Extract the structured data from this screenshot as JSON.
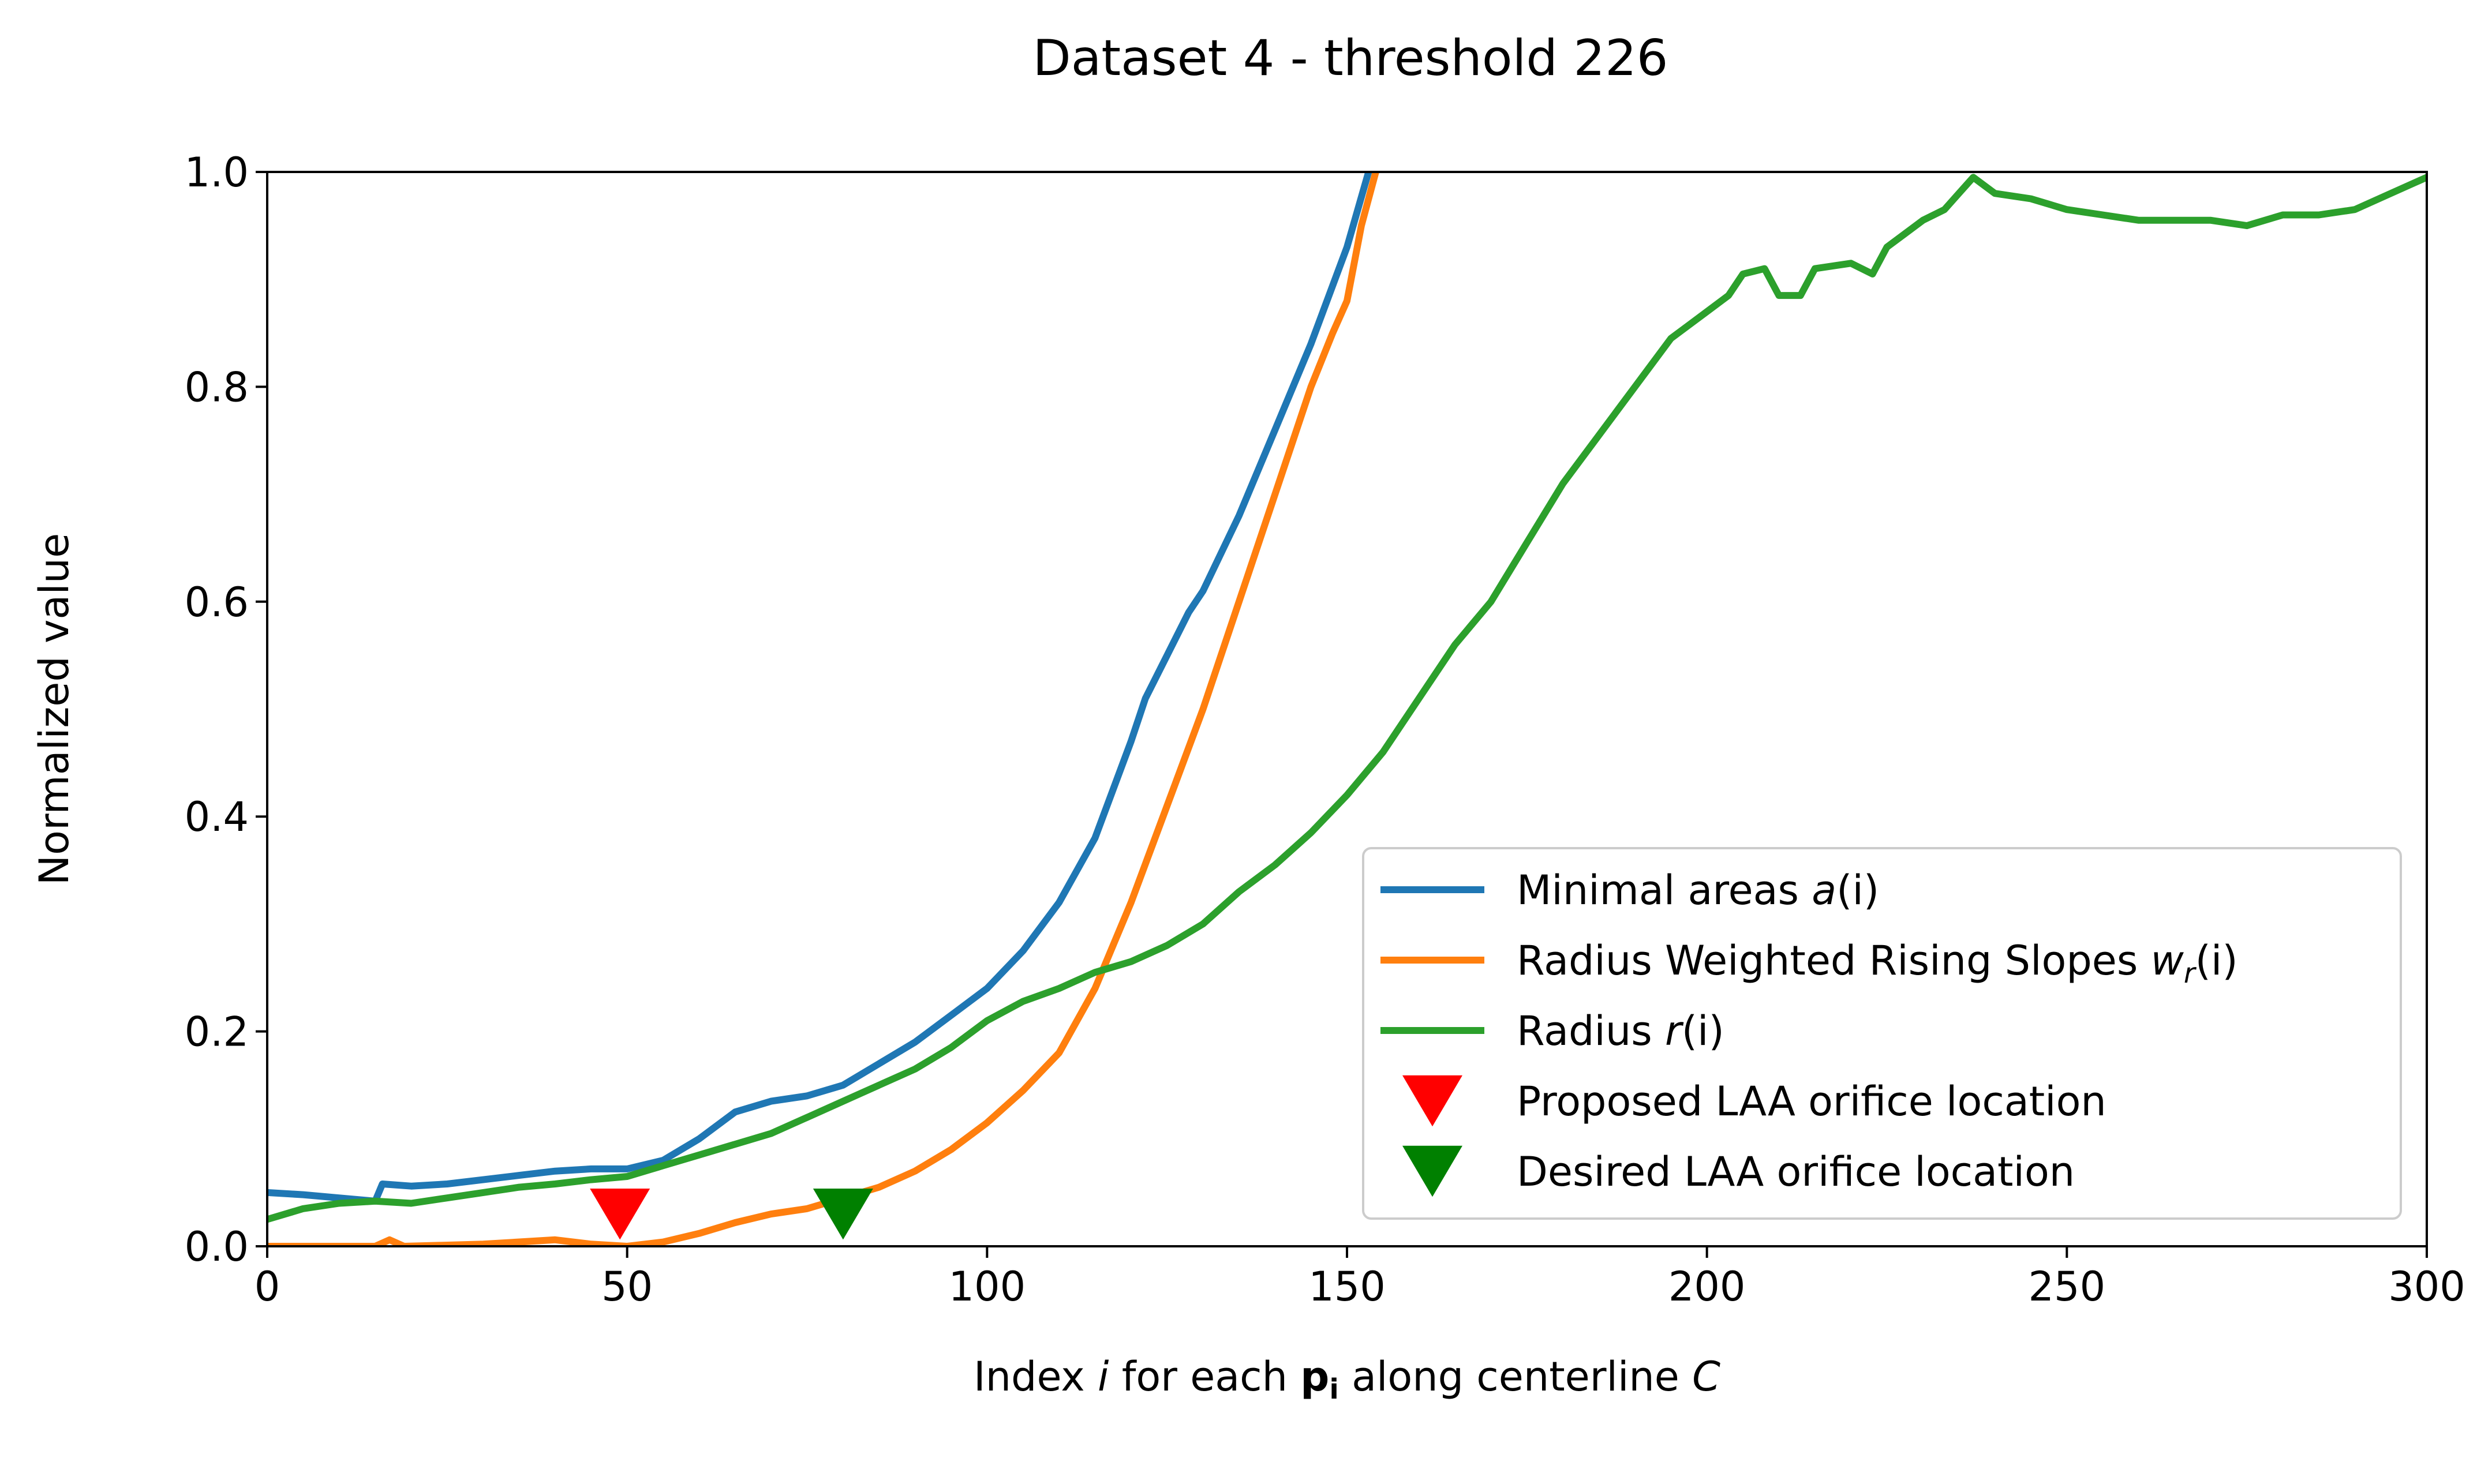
{
  "chart_data": {
    "type": "line",
    "title": "Dataset 4 - threshold 226",
    "xlabel": {
      "prefix": "Index ",
      "i": "i",
      "middle": " for each ",
      "p": "p",
      "p_sub": "i",
      "suffix": " along centerline ",
      "c": "C"
    },
    "ylabel": "Normalized value",
    "xlim": [
      0,
      300
    ],
    "ylim": [
      0,
      1
    ],
    "x_ticks": [
      "0",
      "50",
      "100",
      "150",
      "200",
      "250",
      "300"
    ],
    "y_ticks": [
      "0.0",
      "0.2",
      "0.4",
      "0.6",
      "0.8",
      "1.0"
    ],
    "grid": false,
    "legend_position": "lower right",
    "series": [
      {
        "name": "Minimal areas a(i)",
        "legend": {
          "text": "Minimal areas ",
          "italic": "a",
          "rest": "(i)"
        },
        "color": "#1f77b4",
        "x": [
          0,
          5,
          10,
          15,
          16,
          20,
          25,
          30,
          35,
          40,
          45,
          50,
          55,
          60,
          65,
          70,
          75,
          80,
          85,
          90,
          95,
          100,
          105,
          110,
          115,
          120,
          122,
          125,
          128,
          130,
          135,
          140,
          145,
          150,
          153
        ],
        "y": [
          0.05,
          0.048,
          0.045,
          0.042,
          0.058,
          0.056,
          0.058,
          0.062,
          0.066,
          0.07,
          0.072,
          0.072,
          0.08,
          0.1,
          0.125,
          0.135,
          0.14,
          0.15,
          0.17,
          0.19,
          0.215,
          0.24,
          0.275,
          0.32,
          0.38,
          0.47,
          0.51,
          0.55,
          0.59,
          0.61,
          0.68,
          0.76,
          0.84,
          0.93,
          1.0
        ]
      },
      {
        "name": "Radius Weighted Rising Slopes wr(i)",
        "legend": {
          "text": "Radius Weighted Rising Slopes ",
          "italic": "w",
          "sub": "r",
          "rest": "(i)"
        },
        "color": "#ff7f0e",
        "x": [
          0,
          15,
          17,
          19,
          30,
          40,
          45,
          50,
          55,
          60,
          65,
          70,
          75,
          80,
          85,
          90,
          95,
          100,
          105,
          110,
          115,
          120,
          125,
          130,
          135,
          140,
          143,
          145,
          148,
          150,
          152,
          154
        ],
        "y": [
          0.0,
          0.0,
          0.006,
          0.0,
          0.002,
          0.006,
          0.002,
          0.0,
          0.004,
          0.012,
          0.022,
          0.03,
          0.035,
          0.045,
          0.055,
          0.07,
          0.09,
          0.115,
          0.145,
          0.18,
          0.24,
          0.32,
          0.41,
          0.5,
          0.6,
          0.7,
          0.76,
          0.8,
          0.85,
          0.88,
          0.95,
          1.0
        ]
      },
      {
        "name": "Radius r(i)",
        "legend": {
          "text": "Radius ",
          "italic": "r",
          "rest": "(i)"
        },
        "color": "#2ca02c",
        "x": [
          0,
          5,
          10,
          15,
          20,
          25,
          30,
          35,
          40,
          45,
          50,
          55,
          60,
          65,
          70,
          75,
          80,
          85,
          90,
          95,
          100,
          105,
          110,
          115,
          120,
          125,
          130,
          135,
          140,
          145,
          150,
          155,
          160,
          165,
          170,
          175,
          180,
          185,
          190,
          195,
          200,
          203,
          205,
          208,
          210,
          213,
          215,
          220,
          223,
          225,
          230,
          233,
          235,
          237,
          240,
          245,
          250,
          255,
          260,
          265,
          270,
          275,
          280,
          285,
          290,
          295,
          300
        ],
        "y": [
          0.025,
          0.035,
          0.04,
          0.042,
          0.04,
          0.045,
          0.05,
          0.055,
          0.058,
          0.062,
          0.065,
          0.075,
          0.085,
          0.095,
          0.105,
          0.12,
          0.135,
          0.15,
          0.165,
          0.185,
          0.21,
          0.228,
          0.24,
          0.255,
          0.265,
          0.28,
          0.3,
          0.33,
          0.355,
          0.385,
          0.42,
          0.46,
          0.51,
          0.56,
          0.6,
          0.655,
          0.71,
          0.755,
          0.8,
          0.845,
          0.87,
          0.885,
          0.905,
          0.91,
          0.885,
          0.885,
          0.91,
          0.915,
          0.905,
          0.93,
          0.955,
          0.965,
          0.98,
          0.995,
          0.98,
          0.975,
          0.965,
          0.96,
          0.955,
          0.955,
          0.955,
          0.95,
          0.96,
          0.96,
          0.965,
          0.98,
          0.995
        ]
      }
    ],
    "markers": [
      {
        "name": "Proposed LAA orifice location",
        "x": 49,
        "y": 0.03,
        "color": "#ff0000",
        "shape": "triangle-down"
      },
      {
        "name": "Desired LAA orifice location",
        "x": 80,
        "y": 0.03,
        "color": "#008000",
        "shape": "triangle-down"
      }
    ]
  }
}
